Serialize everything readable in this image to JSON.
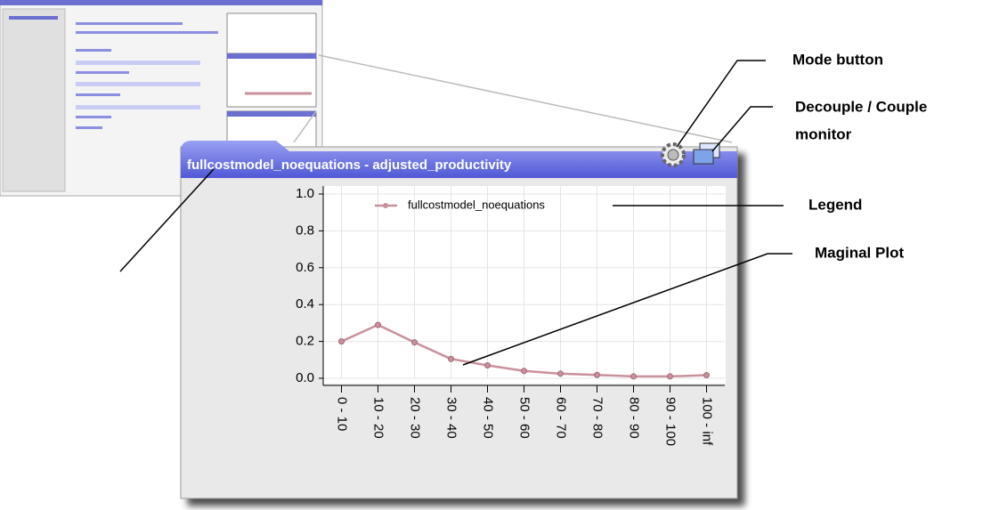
{
  "chart_data": {
    "type": "line",
    "title": "fullcostmodel_noequations - adjusted_productivity",
    "categories": [
      "0 - 10",
      "10 - 20",
      "20 - 30",
      "30 - 40",
      "40 - 50",
      "50 - 60",
      "60 - 70",
      "70 - 80",
      "80 - 90",
      "90 - 100",
      "100 - inf"
    ],
    "series": [
      {
        "name": "fullcostmodel_noequations",
        "color": "#c9919c",
        "values": [
          0.2,
          0.29,
          0.195,
          0.105,
          0.07,
          0.04,
          0.025,
          0.018,
          0.01,
          0.01,
          0.017
        ]
      }
    ],
    "ylim": [
      0,
      1
    ],
    "yticks": [
      {
        "value": 0,
        "label": "0.0"
      },
      0.2,
      0.4,
      0.6,
      0.8,
      {
        "value": 1,
        "label": "1.0"
      }
    ],
    "grid": true
  },
  "callouts": {
    "mode_button": "Mode button",
    "decouple": [
      "Decouple / Couple",
      "monitor"
    ],
    "legend": "Legend",
    "marginal_plot": "Maginal Plot"
  }
}
